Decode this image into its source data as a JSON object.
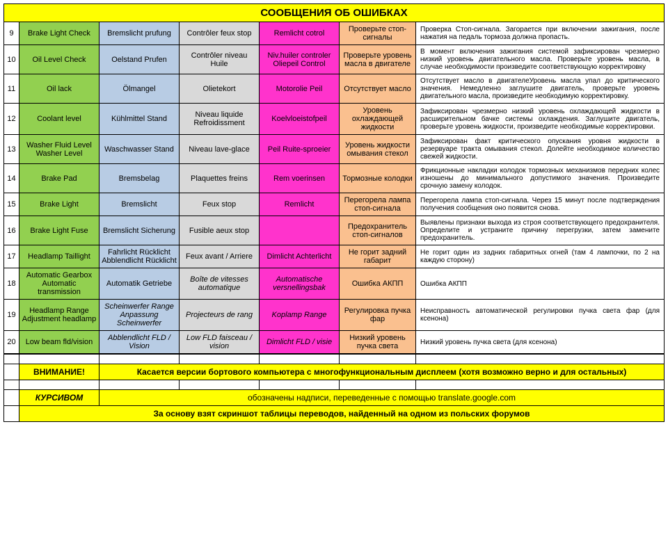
{
  "title": "СООБЩЕНИЯ ОБ ОШИБКАХ",
  "colors": {
    "en": "#92d050",
    "de": "#b8cce4",
    "fr": "#d9d9d9",
    "nl": "#ff33cc",
    "ru": "#fac08f",
    "yellow": "#ffff00"
  },
  "col_widths": {
    "num": 22,
    "en": 115,
    "de": 115,
    "fr": 115,
    "nl": 115,
    "ru": 110,
    "desc": "rest"
  },
  "fonts": {
    "body": 11,
    "title": 15,
    "desc": 10,
    "footer": 12
  },
  "rows": [
    {
      "n": "9",
      "en": "Brake Light Check",
      "de": "Bremslicht prufung",
      "fr": "Contrôler feux stop",
      "nl": "Remlicht cotrol",
      "ru": "Проверьте стоп-сигналы",
      "desc": "Проверка Стоп-сигнала. Загорается при включении зажигания, после нажатия на педаль тормоза должна пропасть."
    },
    {
      "n": "10",
      "en": "Oil Level Check",
      "de": "Oelstand Prufen",
      "fr": "Contrôler niveau Huile",
      "nl": "Niv.huiler controler Oliepeil Control",
      "ru": "Проверьте уровень масла в двигателе",
      "desc": "В момент включения зажигания системой зафиксирован чрезмерно низкий уровень двигательного масла. Проверьте уровень масла, в случае необходимости произведите соответствующую корректировку"
    },
    {
      "n": "11",
      "en": "Oil lack",
      "de": "Ölmangel",
      "fr": "Olietekort",
      "nl": "Motorolie Peil",
      "ru": "Отсутствует масло",
      "desc": "Отсутствует масло в двигателеУровень масла упал до критического значения. Немедленно заглушите двигатель, проверьте уровень двигательного масла, произведите необходимую корректировку."
    },
    {
      "n": "12",
      "en": "Coolant level",
      "de": "Kühlmittel Stand",
      "fr": "Niveau liquide Refroidissment",
      "nl": "Koelvloeistofpeil",
      "ru": "Уровень охлаждающей жидкости",
      "desc": "Зафиксирован чрезмерно низкий уровень охлаждающей жидкости в расширительном бачке системы охлаждения. Заглушите двигатель, проверьте уровень жидкости, произведите необходимые корректировки."
    },
    {
      "n": "13",
      "en": "Washer Fluid Level Washer Level",
      "de": "Waschwasser Stand",
      "fr": "Niveau lave-glace",
      "nl": "Peil Ruite-sproeier",
      "ru": "Уровень жидкости омывания стекол",
      "desc": "Зафиксирован факт критического опускания уровня жидкости в резервуаре тракта омывания стекол. Долейте необходимое количество свежей жидкости."
    },
    {
      "n": "14",
      "en": "Brake Pad",
      "de": "Bremsbelag",
      "fr": "Plaquettes freins",
      "nl": "Rem voerinsen",
      "ru": "Тормозные колодки",
      "desc": "Фрикционные накладки колодок тормозных механизмов передних колес изношены до минимального допустимого значения. Произведите срочную замену колодок."
    },
    {
      "n": "15",
      "en": "Brake Light",
      "de": "Bremslicht",
      "fr": "Feux stop",
      "nl": "Remlicht",
      "ru": "Перегорела лампа стоп-сигнала",
      "desc": "Перегорела лампа стоп-сигнала. Через 15 минут после подтверждения получения сообщения оно появится снова."
    },
    {
      "n": "16",
      "en": "Brake Light Fuse",
      "de": "Bremslicht Sicherung",
      "fr": "Fusible aeux stop",
      "nl": "",
      "ru": "Предохранитель стоп-сигналов",
      "desc": "Выявлены признаки выхода из строя соответствующего предохранителя. Определите и устраните причину перегрузки, затем замените предохранитель."
    },
    {
      "n": "17",
      "en": "Headlamp Taillight",
      "de": "Fahrlicht Rücklicht Abblendlicht Rücklicht",
      "fr": "Feux avant / Arriere",
      "nl": "Dimlicht Achterlicht",
      "ru": "Не горит задний габарит",
      "desc": "Не горит один из задних габаритных огней (там 4 лампочки, по 2 на каждую сторону)"
    },
    {
      "n": "18",
      "en": "Automatic Gearbox Automatic transmission",
      "de": "Automatik Getriebe",
      "fr": "Boîte de vitesses automatique",
      "fr_it": true,
      "nl": "Automatische versnellingsbak",
      "nl_it": true,
      "ru": "Ошибка АКПП",
      "desc": "Ошибка АКПП"
    },
    {
      "n": "19",
      "en": "Headlamp Range Adjustment headlamp",
      "de": "Scheinwerfer Range Anpassung Scheinwerfer",
      "de_it": true,
      "fr": "Projecteurs de rang",
      "fr_it": true,
      "nl": "Koplamp Range",
      "nl_it": true,
      "ru": "Регулировка пучка фар",
      "desc": "Неисправность автоматической регулировки пучка света фар (для ксенона)"
    },
    {
      "n": "20",
      "en": "Low beam fld/vision",
      "de": "Abblendlicht FLD / Vision",
      "de_it": true,
      "fr": "Low FLD faisceau / vision",
      "fr_it": true,
      "nl": "Dimlicht FLD / visie",
      "nl_it": true,
      "ru": "Низкий уровень пучка света",
      "desc": "Низкий уровень пучка света (для ксенона)"
    }
  ],
  "footer": {
    "attention_label": "ВНИМАНИЕ!",
    "attention_text": "Касается версии бортового компьютера с многофункциональным дисплеем (хотя возможно верно и для остальных)",
    "italic_label": "КУРСИВОМ",
    "italic_text": "обозначены надписи, переведенные с помощью translate.google.com",
    "source_text": "За основу взят скриншот таблицы переводов, найденный на одном из польских форумов"
  }
}
